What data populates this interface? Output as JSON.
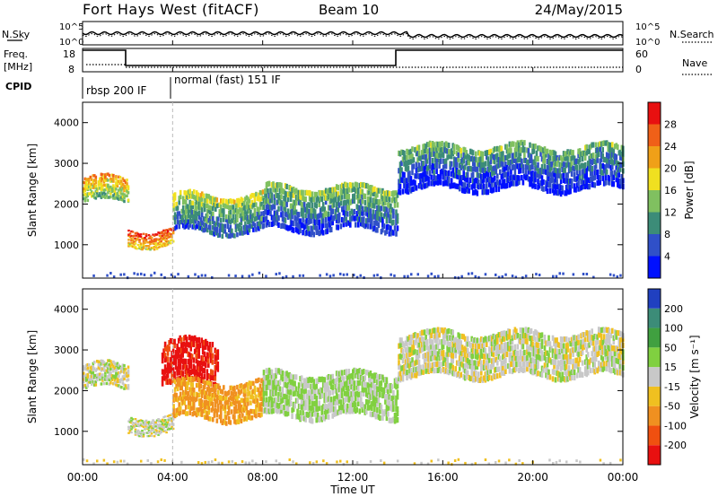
{
  "header": {
    "station": "Fort Hays West (fitACF)",
    "beam": "Beam 10",
    "date": "24/May/2015"
  },
  "time_axis": {
    "label": "Time UT",
    "ticks": [
      "00:00",
      "04:00",
      "08:00",
      "12:00",
      "16:00",
      "20:00",
      "00:00"
    ]
  },
  "panels": {
    "sky": {
      "left_label": "N.Sky",
      "left_ticks": [
        "10^5",
        "10^0"
      ],
      "right_ticks": [
        "10^5",
        "10^0"
      ],
      "right_label": "N.Search"
    },
    "freq": {
      "left_label_1": "Freq.",
      "left_label_2": "[MHz]",
      "left_ticks": [
        "18",
        "8"
      ],
      "right_ticks": [
        "60",
        "0"
      ],
      "right_label": "Nave"
    },
    "cpid": {
      "label": "CPID",
      "seg1": "rbsp 200 IF",
      "seg2": "normal (fast) 151 IF"
    },
    "power": {
      "ylabel": "Slant Range [km]",
      "cbar_label": "Power [dB]",
      "cbar_ticks": [
        "4",
        "8",
        "12",
        "16",
        "20",
        "24",
        "28"
      ],
      "cbar_colors": [
        "#0010ff",
        "#3050c8",
        "#3c8c78",
        "#80c060",
        "#f0e020",
        "#f0a018",
        "#f06018",
        "#e81010"
      ]
    },
    "velocity": {
      "ylabel": "Slant Range [km]",
      "cbar_label": "Velocity [m s⁻¹]",
      "cbar_ticks": [
        "200",
        "100",
        "50",
        "15",
        "-15",
        "-50",
        "-100",
        "-200"
      ],
      "cbar_colors": [
        "#2040c0",
        "#3c8c78",
        "#40a040",
        "#80d040",
        "#c8c8c8",
        "#f0c020",
        "#f09020",
        "#f05010",
        "#e81010"
      ]
    },
    "y_ticks": [
      "1000",
      "2000",
      "3000",
      "4000"
    ]
  },
  "chart_data": [
    {
      "type": "heatmap",
      "title": "Power [dB]",
      "xlabel": "Time UT",
      "ylabel": "Slant Range [km]",
      "xlim": [
        "00:00",
        "24:00"
      ],
      "ylim": [
        180,
        4500
      ],
      "color_scale": [
        0,
        30
      ],
      "bands": [
        {
          "t_start": "00:00",
          "t_end": "02:00",
          "range_start": 2000,
          "range_end": 2600,
          "value": 18
        },
        {
          "t_start": "02:00",
          "t_end": "04:00",
          "range_start": 950,
          "range_end": 1350,
          "value": 24
        },
        {
          "t_start": "04:00",
          "t_end": "08:00",
          "range_start": 1250,
          "range_end": 2200,
          "value": 12
        },
        {
          "t_start": "08:00",
          "t_end": "14:00",
          "range_start": 1300,
          "range_end": 2400,
          "value": 10
        },
        {
          "t_start": "14:00",
          "t_end": "24:00",
          "range_start": 2300,
          "range_end": 3400,
          "value": 8
        }
      ]
    },
    {
      "type": "heatmap",
      "title": "Velocity [m s⁻¹]",
      "xlabel": "Time UT",
      "ylabel": "Slant Range [km]",
      "xlim": [
        "00:00",
        "24:00"
      ],
      "ylim": [
        180,
        4500
      ],
      "color_scale": [
        -250,
        250
      ],
      "bands": [
        {
          "t_start": "00:00",
          "t_end": "02:00",
          "range_start": 2000,
          "range_end": 2600,
          "value": 0
        },
        {
          "t_start": "02:00",
          "t_end": "04:00",
          "range_start": 950,
          "range_end": 1350,
          "value": 0
        },
        {
          "t_start": "03:30",
          "t_end": "06:00",
          "range_start": 2100,
          "range_end": 3200,
          "value": -220
        },
        {
          "t_start": "04:00",
          "t_end": "08:00",
          "range_start": 1250,
          "range_end": 2200,
          "value": -60
        },
        {
          "t_start": "08:00",
          "t_end": "14:00",
          "range_start": 1300,
          "range_end": 2400,
          "value": 20
        },
        {
          "t_start": "14:00",
          "t_end": "24:00",
          "range_start": 2300,
          "range_end": 3400,
          "value": 0
        }
      ]
    }
  ]
}
